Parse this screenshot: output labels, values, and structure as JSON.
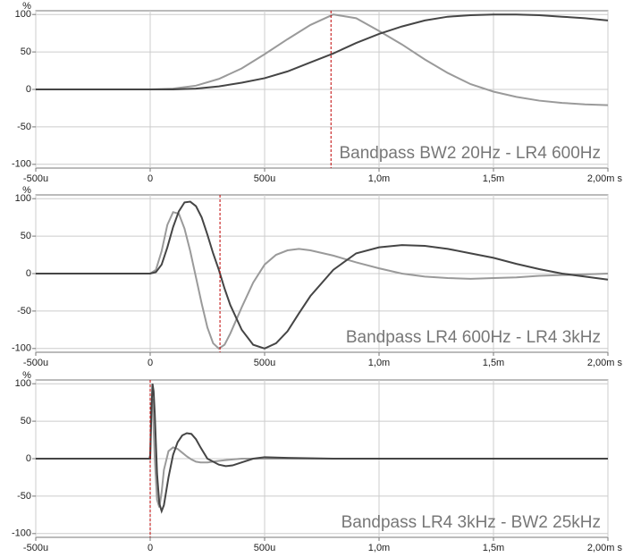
{
  "chart_data": [
    {
      "type": "line",
      "title": "Bandpass BW2 20Hz - LR4 600Hz",
      "y_label": "%",
      "x": [
        -500,
        0,
        100,
        200,
        300,
        400,
        500,
        600,
        700,
        800,
        900,
        1000,
        1100,
        1200,
        1300,
        1400,
        1500,
        1600,
        1700,
        1800,
        1900,
        2000
      ],
      "series": [
        {
          "color": "#9a9a9a",
          "values": [
            0,
            0,
            1,
            5,
            14,
            28,
            47,
            67,
            86,
            100,
            95,
            78,
            60,
            40,
            22,
            7,
            -3,
            -10,
            -15,
            -18,
            -20,
            -21
          ]
        },
        {
          "color": "#454545",
          "values": [
            0,
            0,
            0,
            1,
            4,
            9,
            15,
            24,
            36,
            48,
            62,
            74,
            84,
            92,
            97,
            99,
            100,
            100,
            99,
            97,
            95,
            92
          ]
        }
      ],
      "marker_x": 790,
      "marker_color": "#c00000",
      "xlim": [
        -500,
        2000
      ],
      "ylim": [
        -105,
        105
      ],
      "xticks": [
        {
          "value": -500,
          "label": "-500u"
        },
        0,
        {
          "value": 500,
          "label": "500u"
        },
        {
          "value": 1000,
          "label": "1,0m"
        },
        {
          "value": 1500,
          "label": "1,5m"
        },
        {
          "value": 2000,
          "label": "2,00m s"
        }
      ],
      "yticks": [
        100,
        50,
        0,
        -50,
        -100
      ],
      "grid": true
    },
    {
      "type": "line",
      "title": "Bandpass LR4 600Hz - LR4 3kHz",
      "y_label": "%",
      "x": [
        -500,
        -100,
        0,
        25,
        50,
        75,
        100,
        125,
        150,
        175,
        200,
        225,
        250,
        275,
        300,
        325,
        350,
        400,
        450,
        500,
        550,
        600,
        650,
        700,
        800,
        900,
        1000,
        1100,
        1200,
        1300,
        1400,
        1500,
        1600,
        1700,
        1800,
        1900,
        2000
      ],
      "series": [
        {
          "color": "#9a9a9a",
          "values": [
            0,
            0,
            0,
            5,
            30,
            65,
            82,
            80,
            60,
            30,
            -5,
            -40,
            -72,
            -93,
            -100,
            -95,
            -80,
            -45,
            -12,
            12,
            25,
            31,
            33,
            31,
            24,
            15,
            7,
            0,
            -4,
            -6,
            -7,
            -6,
            -5,
            -3,
            -2,
            -1,
            0
          ]
        },
        {
          "color": "#454545",
          "values": [
            0,
            0,
            0,
            2,
            12,
            35,
            62,
            83,
            95,
            96,
            90,
            75,
            52,
            27,
            5,
            -20,
            -42,
            -75,
            -95,
            -100,
            -93,
            -77,
            -53,
            -30,
            5,
            27,
            35,
            38,
            37,
            33,
            27,
            21,
            13,
            6,
            0,
            -4,
            -8
          ]
        }
      ],
      "marker_x": 305,
      "marker_color": "#c00000",
      "xlim": [
        -500,
        2000
      ],
      "ylim": [
        -105,
        105
      ],
      "xticks": [
        {
          "value": -500,
          "label": "-500u"
        },
        0,
        {
          "value": 500,
          "label": "500u"
        },
        {
          "value": 1000,
          "label": "1,0m"
        },
        {
          "value": 1500,
          "label": "1,5m"
        },
        {
          "value": 2000,
          "label": "2,00m s"
        }
      ],
      "yticks": [
        100,
        50,
        0,
        -50,
        -100
      ],
      "grid": true
    },
    {
      "type": "line",
      "title": "Bandpass LR4 3kHz - BW2 25kHz",
      "y_label": "%",
      "x": [
        -500,
        -5,
        0,
        5,
        10,
        15,
        20,
        30,
        40,
        50,
        60,
        80,
        100,
        120,
        140,
        160,
        180,
        200,
        220,
        250,
        300,
        330,
        360,
        400,
        450,
        500,
        600,
        800,
        1000,
        1500,
        2000
      ],
      "series": [
        {
          "color": "#9a9a9a",
          "values": [
            0,
            0,
            5,
            70,
            80,
            40,
            0,
            -55,
            -65,
            -45,
            -15,
            10,
            15,
            13,
            8,
            3,
            -1,
            -4,
            -5,
            -5,
            -3,
            -2,
            -1,
            0,
            0,
            0,
            0,
            0,
            0,
            0,
            0
          ]
        },
        {
          "color": "#454545",
          "values": [
            0,
            0,
            0,
            60,
            100,
            90,
            60,
            -20,
            -60,
            -70,
            -62,
            -25,
            5,
            22,
            31,
            34,
            33,
            26,
            15,
            0,
            -8,
            -10,
            -9,
            -5,
            0,
            2,
            1,
            0,
            0,
            0,
            0
          ]
        }
      ],
      "marker_x": 0,
      "marker_color": "#c00000",
      "xlim": [
        -500,
        2000
      ],
      "ylim": [
        -105,
        105
      ],
      "xticks": [
        {
          "value": -500,
          "label": "-500u"
        },
        0,
        {
          "value": 500,
          "label": "500u"
        },
        {
          "value": 1000,
          "label": "1,0m"
        },
        {
          "value": 1500,
          "label": "1,5m"
        },
        {
          "value": 2000,
          "label": "2,00m s"
        }
      ],
      "yticks": [
        100,
        50,
        0,
        -50,
        -100
      ],
      "grid": true
    }
  ]
}
